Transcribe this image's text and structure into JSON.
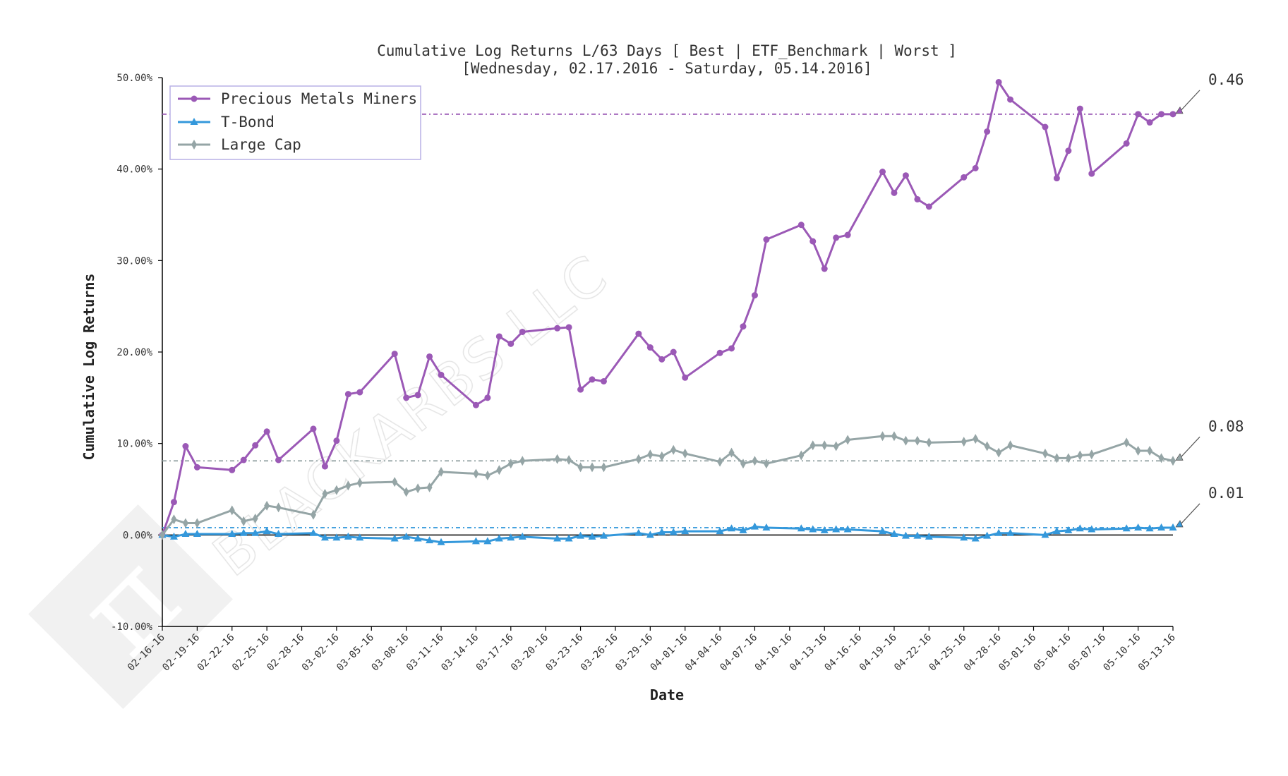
{
  "chart_data": {
    "type": "line",
    "title_line1": "Cumulative Log Returns L/63 Days [ Best | ETF_Benchmark | Worst ]",
    "title_line2": "[Wednesday, 02.17.2016 - Saturday, 05.14.2016]",
    "xlabel": "Date",
    "ylabel": "Cumulative Log Returns",
    "watermark": "BLACKARBS LLC",
    "ylim": [
      -0.1,
      0.5
    ],
    "yticks": [
      -0.1,
      0.0,
      0.1,
      0.2,
      0.3,
      0.4,
      0.5
    ],
    "ytick_labels": [
      "-10.00%",
      "0.00%",
      "10.00%",
      "20.00%",
      "30.00%",
      "40.00%",
      "50.00%"
    ],
    "xlim_days": [
      0,
      87
    ],
    "xtick_days": [
      0,
      3,
      6,
      9,
      12,
      15,
      18,
      21,
      24,
      27,
      30,
      33,
      36,
      39,
      42,
      45,
      48,
      51,
      54,
      57,
      60,
      63,
      66,
      69,
      72,
      75,
      78,
      81,
      84,
      87
    ],
    "xtick_labels": [
      "02-16-16",
      "02-19-16",
      "02-22-16",
      "02-25-16",
      "02-28-16",
      "03-02-16",
      "03-05-16",
      "03-08-16",
      "03-11-16",
      "03-14-16",
      "03-17-16",
      "03-20-16",
      "03-23-16",
      "03-26-16",
      "03-29-16",
      "04-01-16",
      "04-04-16",
      "04-07-16",
      "04-10-16",
      "04-13-16",
      "04-16-16",
      "04-19-16",
      "04-22-16",
      "04-25-16",
      "04-28-16",
      "05-01-16",
      "05-04-16",
      "05-07-16",
      "05-10-16",
      "05-13-16"
    ],
    "x_days": [
      0,
      1,
      2,
      3,
      6,
      7,
      8,
      9,
      10,
      13,
      14,
      15,
      16,
      17,
      20,
      21,
      22,
      23,
      24,
      27,
      28,
      29,
      30,
      31,
      34,
      35,
      36,
      37,
      38,
      41,
      42,
      43,
      44,
      45,
      48,
      49,
      50,
      51,
      52,
      55,
      56,
      57,
      58,
      59,
      62,
      63,
      64,
      65,
      66,
      69,
      70,
      71,
      72,
      73,
      76,
      77,
      78,
      79,
      80,
      83,
      84,
      85,
      86,
      87
    ],
    "series": [
      {
        "name": "Precious Metals Miners",
        "color": "#9b59b6",
        "marker": "circle",
        "values": [
          0.0,
          0.036,
          0.097,
          0.074,
          0.071,
          0.082,
          0.098,
          0.113,
          0.082,
          0.116,
          0.075,
          0.103,
          0.154,
          0.156,
          0.198,
          0.15,
          0.153,
          0.195,
          0.175,
          0.142,
          0.15,
          0.217,
          0.209,
          0.222,
          0.226,
          0.227,
          0.159,
          0.17,
          0.168,
          0.22,
          0.205,
          0.192,
          0.2,
          0.172,
          0.199,
          0.204,
          0.228,
          0.262,
          0.323,
          0.339,
          0.321,
          0.291,
          0.325,
          0.328,
          0.397,
          0.374,
          0.393,
          0.367,
          0.359,
          0.391,
          0.401,
          0.441,
          0.495,
          0.476,
          0.446,
          0.39,
          0.42,
          0.466,
          0.395,
          0.428,
          0.46,
          0.451,
          0.46,
          0.46
        ],
        "end_label": "0.46"
      },
      {
        "name": "T-Bond",
        "color": "#3498db",
        "marker": "triangle",
        "values": [
          0.0,
          -0.002,
          0.001,
          0.001,
          0.001,
          0.002,
          0.002,
          0.004,
          0.001,
          0.002,
          -0.003,
          -0.003,
          -0.002,
          -0.003,
          -0.004,
          -0.002,
          -0.004,
          -0.006,
          -0.008,
          -0.007,
          -0.007,
          -0.004,
          -0.003,
          -0.002,
          -0.004,
          -0.004,
          -0.001,
          -0.002,
          -0.001,
          0.002,
          0.0,
          0.003,
          0.003,
          0.004,
          0.004,
          0.007,
          0.005,
          0.009,
          0.008,
          0.007,
          0.006,
          0.005,
          0.006,
          0.006,
          0.004,
          0.001,
          -0.001,
          -0.001,
          -0.002,
          -0.003,
          -0.004,
          -0.001,
          0.002,
          0.002,
          0.0,
          0.004,
          0.005,
          0.007,
          0.006,
          0.007,
          0.008,
          0.007,
          0.008,
          0.008
        ],
        "end_label": "0.01"
      },
      {
        "name": "Large Cap",
        "color": "#95a5a6",
        "marker": "diamond",
        "values": [
          0.0,
          0.017,
          0.013,
          0.013,
          0.027,
          0.015,
          0.018,
          0.032,
          0.03,
          0.022,
          0.045,
          0.049,
          0.054,
          0.057,
          0.058,
          0.047,
          0.051,
          0.052,
          0.069,
          0.067,
          0.065,
          0.071,
          0.078,
          0.081,
          0.083,
          0.082,
          0.074,
          0.074,
          0.074,
          0.083,
          0.088,
          0.086,
          0.093,
          0.089,
          0.08,
          0.09,
          0.078,
          0.081,
          0.078,
          0.087,
          0.098,
          0.098,
          0.097,
          0.104,
          0.108,
          0.108,
          0.103,
          0.103,
          0.101,
          0.102,
          0.105,
          0.097,
          0.09,
          0.098,
          0.089,
          0.084,
          0.084,
          0.087,
          0.088,
          0.101,
          0.092,
          0.092,
          0.084,
          0.081
        ],
        "end_label": "0.08"
      }
    ],
    "legend_placement": "top-left"
  }
}
